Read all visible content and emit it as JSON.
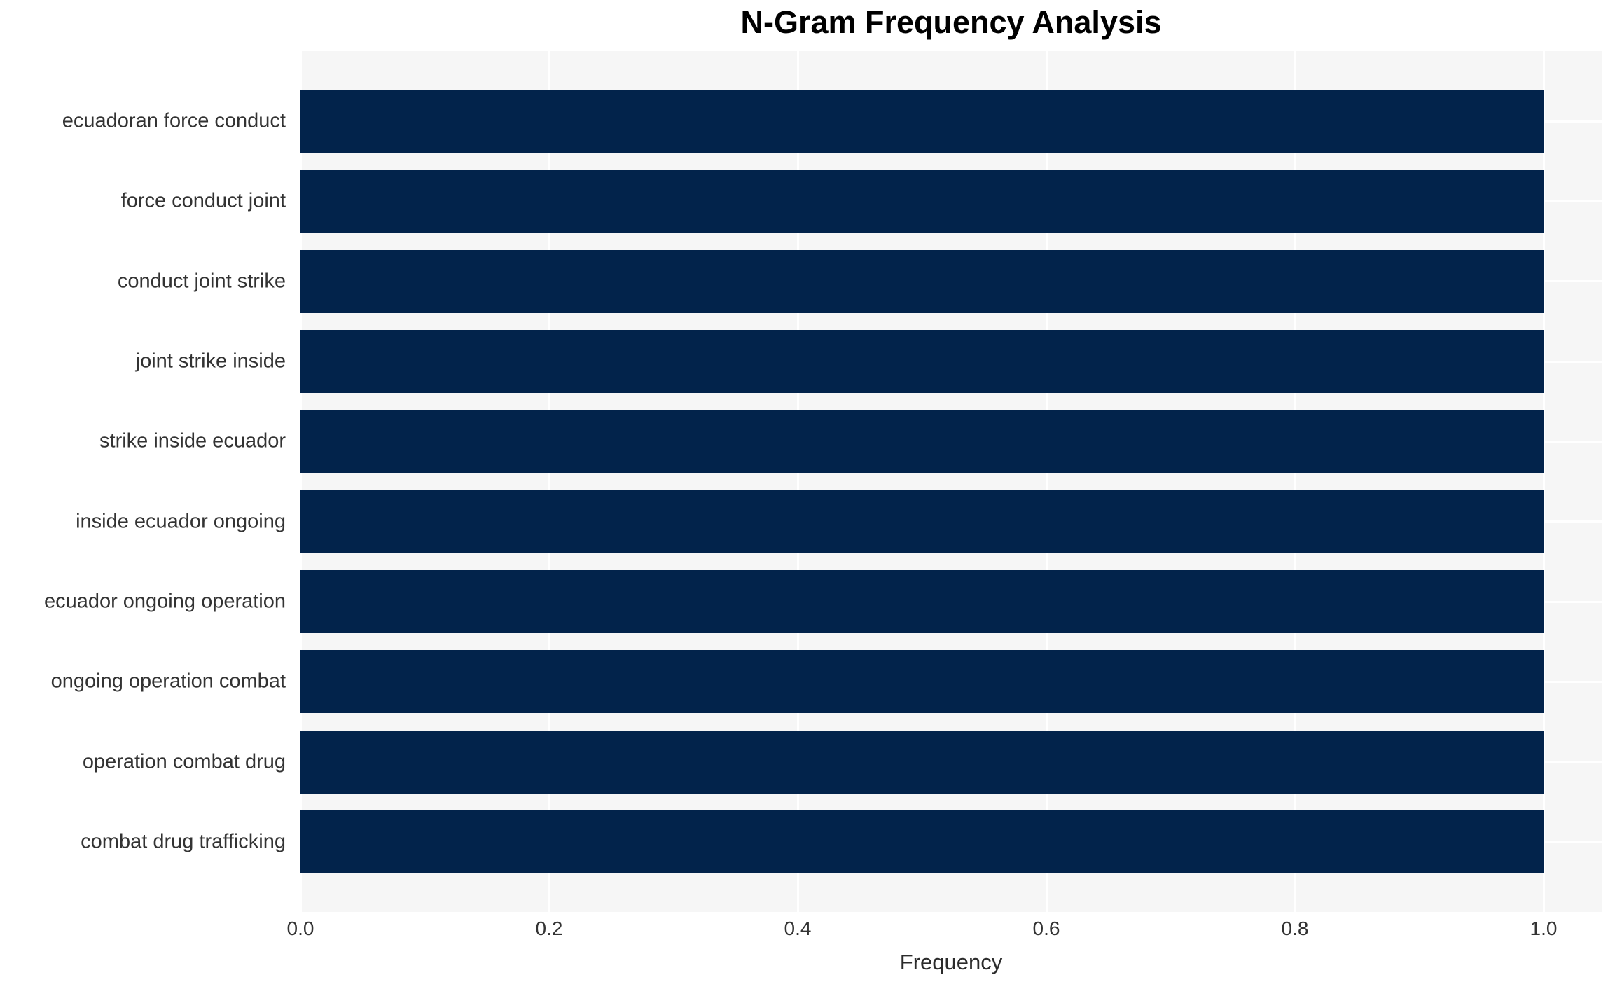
{
  "title": "N-Gram Frequency Analysis",
  "colors": {
    "bar": "#02234B",
    "plot_background": "#F6F6F6",
    "gridline": "#FFFFFF",
    "page_background": "#FFFFFF",
    "title_text": "#000000",
    "axis_text": "#333333"
  },
  "chart_data": {
    "type": "bar",
    "orientation": "horizontal",
    "title": "N-Gram Frequency Analysis",
    "xlabel": "Frequency",
    "ylabel": "",
    "categories": [
      "ecuadoran force conduct",
      "force conduct joint",
      "conduct joint strike",
      "joint strike inside",
      "strike inside ecuador",
      "inside ecuador ongoing",
      "ecuador ongoing operation",
      "ongoing operation combat",
      "operation combat drug",
      "combat drug trafficking"
    ],
    "values": [
      1.0,
      1.0,
      1.0,
      1.0,
      1.0,
      1.0,
      1.0,
      1.0,
      1.0,
      1.0
    ],
    "xticks": [
      0.0,
      0.2,
      0.4,
      0.6,
      0.8,
      1.0
    ],
    "xtick_labels": [
      "0.0",
      "0.2",
      "0.4",
      "0.6",
      "0.8",
      "1.0"
    ],
    "xlim": [
      0.0,
      1.047
    ],
    "grid": true,
    "legend": null
  }
}
